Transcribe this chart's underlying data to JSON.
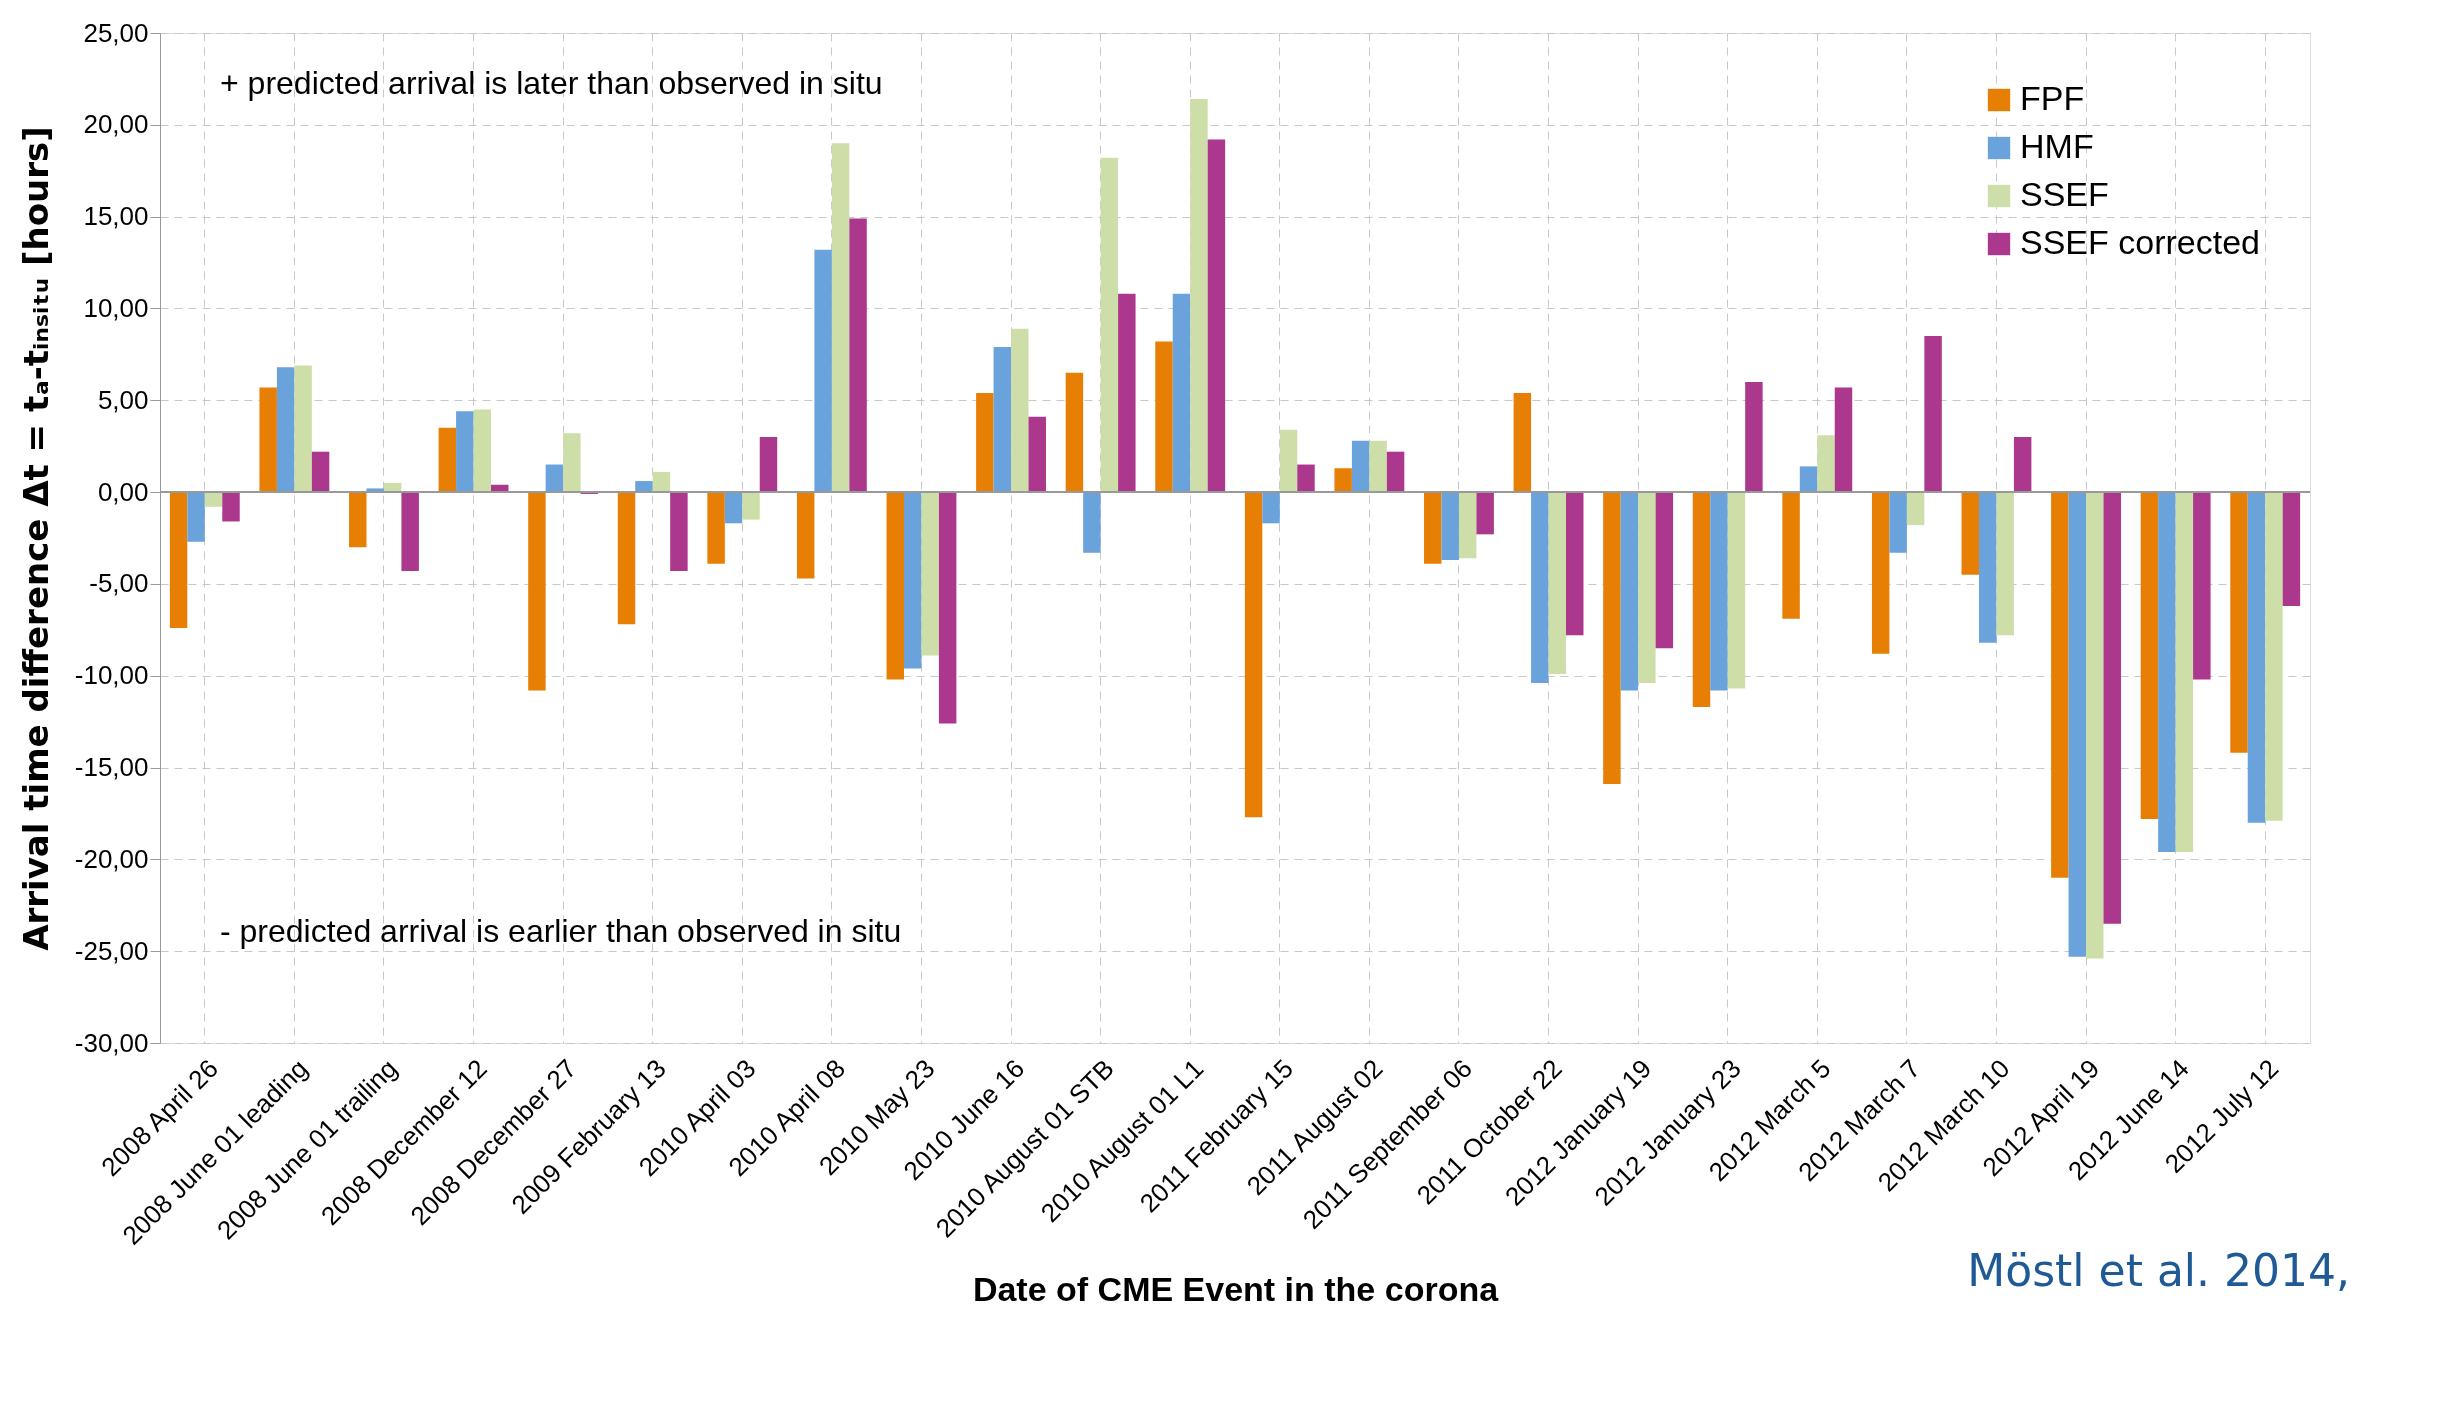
{
  "chart_data": {
    "type": "bar",
    "xlabel": "Date of CME Event in the corona",
    "ylabel": "Arrival time difference  Δt = tₐ-tᵢₙₛᵢₜᵤ  [hours]",
    "categories": [
      "2008 April 26",
      "2008 June 01 leading",
      "2008 June 01 trailing",
      "2008 December 12",
      "2008 December 27",
      "2009 February 13",
      "2010 April 03",
      "2010 April 08",
      "2010 May 23",
      "2010 June 16",
      "2010 August 01 STB",
      "2010 August 01 L1",
      "2011 February 15",
      "2011 August 02",
      "2011 September 06",
      "2011 October 22",
      "2012 January 19",
      "2012 January 23",
      "2012 March 5",
      "2012 March 7",
      "2012 March 10",
      "2012 April 19",
      "2012 June 14",
      "2012 July 12"
    ],
    "series": [
      {
        "name": "FPF",
        "color": "#e87f05",
        "values": [
          -7.4,
          5.7,
          -3.0,
          3.5,
          -10.8,
          -7.2,
          -3.9,
          -4.7,
          -10.2,
          5.4,
          6.5,
          8.2,
          -17.7,
          1.3,
          -3.9,
          5.4,
          -15.9,
          -11.7,
          -6.9,
          -8.8,
          -4.5,
          -21.0,
          -17.8,
          -14.2
        ]
      },
      {
        "name": "HMF",
        "color": "#6aa2dc",
        "values": [
          -2.7,
          6.8,
          0.2,
          4.4,
          1.5,
          0.6,
          -1.7,
          13.2,
          -9.6,
          7.9,
          -3.3,
          10.8,
          -1.7,
          2.8,
          -3.7,
          -10.4,
          -10.8,
          -10.8,
          1.4,
          -3.3,
          -8.2,
          -25.3,
          -19.6,
          -18.0
        ]
      },
      {
        "name": "SSEF",
        "color": "#cedea9",
        "values": [
          -0.8,
          6.9,
          0.5,
          4.5,
          3.2,
          1.1,
          -1.5,
          19.0,
          -8.9,
          8.9,
          18.2,
          21.4,
          3.4,
          2.8,
          -3.6,
          -9.9,
          -10.4,
          -10.7,
          3.1,
          -1.8,
          -7.8,
          -25.4,
          -19.6,
          -17.9
        ]
      },
      {
        "name": "SSEF corrected",
        "color": "#ac388d",
        "values": [
          -1.6,
          2.2,
          -4.3,
          0.4,
          -0.1,
          -4.3,
          3.0,
          14.9,
          -12.6,
          4.1,
          10.8,
          19.2,
          1.5,
          2.2,
          -2.3,
          -7.8,
          -8.5,
          6.0,
          5.7,
          8.5,
          3.0,
          -23.5,
          -10.2,
          -6.2
        ]
      }
    ],
    "ylim": [
      -30,
      25
    ],
    "yticks": [
      {
        "value": -30,
        "label": "-30,00"
      },
      {
        "value": -25,
        "label": "-25,00"
      },
      {
        "value": -20,
        "label": "-20,00"
      },
      {
        "value": -15,
        "label": "-15,00"
      },
      {
        "value": -10,
        "label": "-10,00"
      },
      {
        "value": -5,
        "label": "-5,00"
      },
      {
        "value": 0,
        "label": "0,00"
      },
      {
        "value": 5,
        "label": "5,00"
      },
      {
        "value": 10,
        "label": "10,00"
      },
      {
        "value": 15,
        "label": "15,00"
      },
      {
        "value": 20,
        "label": "20,00"
      },
      {
        "value": 25,
        "label": "25,00"
      }
    ],
    "grid": true,
    "legend": "top right",
    "annotations": [
      "+ predicted arrival is later than observed in situ",
      "- predicted arrival is earlier than observed in situ",
      "Möstl et al. 2014,"
    ]
  }
}
